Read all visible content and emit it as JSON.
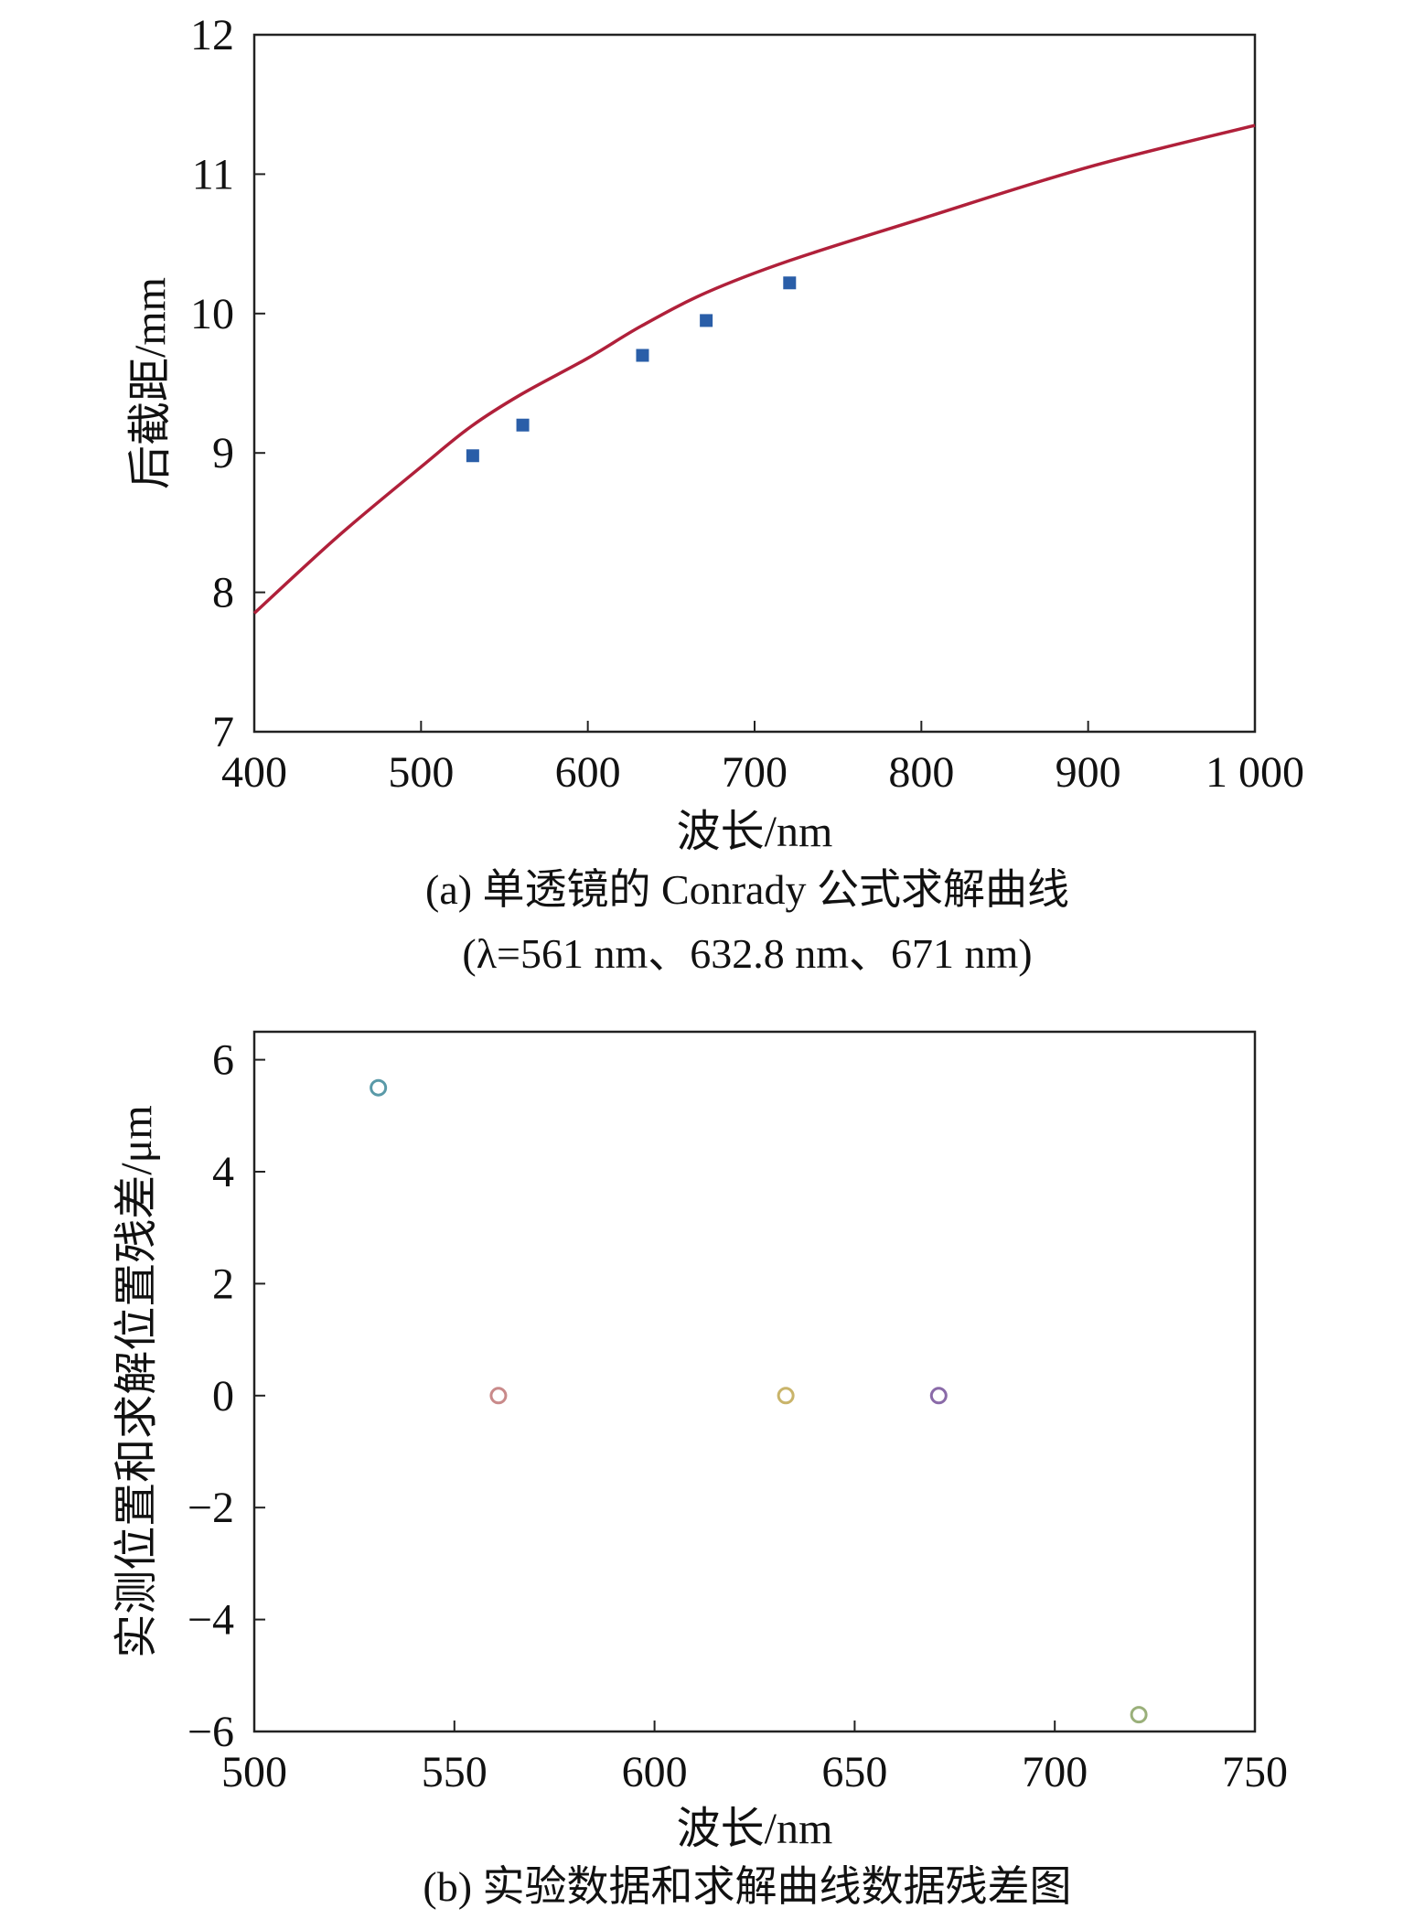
{
  "chart_data": [
    {
      "type": "line",
      "caption": "(a) 单透镜的 Conrady 公式求解曲线",
      "caption_line2": "(λ=561 nm、632.8 nm、671 nm)",
      "xlabel": "波长/nm",
      "ylabel": "后截距/mm",
      "xlim": [
        400,
        1000
      ],
      "ylim": [
        7,
        12
      ],
      "xticks": [
        400,
        500,
        600,
        700,
        800,
        900,
        1000
      ],
      "xtick_labels": [
        "400",
        "500",
        "600",
        "700",
        "800",
        "900",
        "1 000"
      ],
      "yticks": [
        7,
        8,
        9,
        10,
        11,
        12
      ],
      "ytick_labels": [
        "7",
        "8",
        "9",
        "10",
        "11",
        "12"
      ],
      "grid": false,
      "series": [
        {
          "kind": "line",
          "color": "#b0203a",
          "x": [
            400,
            450,
            500,
            530,
            560,
            600,
            632,
            671,
            721,
            800,
            900,
            1000
          ],
          "y": [
            7.85,
            8.4,
            8.9,
            9.19,
            9.42,
            9.68,
            9.91,
            10.15,
            10.38,
            10.68,
            11.05,
            11.35
          ]
        },
        {
          "kind": "scatter",
          "color": "#2a5ea8",
          "x": [
            531,
            561,
            632.8,
            671,
            721
          ],
          "y": [
            8.98,
            9.2,
            9.7,
            9.95,
            10.22
          ]
        }
      ]
    },
    {
      "type": "scatter",
      "caption": "(b) 实验数据和求解曲线数据残差图",
      "xlabel": "波长/nm",
      "ylabel": "实测位置和求解位置残差/μm",
      "xlim": [
        500,
        750
      ],
      "ylim": [
        -6,
        6.5
      ],
      "xticks": [
        500,
        550,
        600,
        650,
        700,
        750
      ],
      "xtick_labels": [
        "500",
        "550",
        "600",
        "650",
        "700",
        "750"
      ],
      "yticks": [
        -6,
        -4,
        -2,
        0,
        2,
        4,
        6
      ],
      "ytick_labels": [
        "−6",
        "−4",
        "−2",
        "0",
        "2",
        "4",
        "6"
      ],
      "grid": false,
      "points": [
        {
          "x": 531,
          "y": 5.5,
          "color": "#5a9aa8"
        },
        {
          "x": 561,
          "y": 0,
          "color": "#c98a8a"
        },
        {
          "x": 632.8,
          "y": 0,
          "color": "#c9b46a"
        },
        {
          "x": 671,
          "y": 0,
          "color": "#8a6aa8"
        },
        {
          "x": 721,
          "y": -5.7,
          "color": "#9ab07a"
        }
      ]
    }
  ]
}
